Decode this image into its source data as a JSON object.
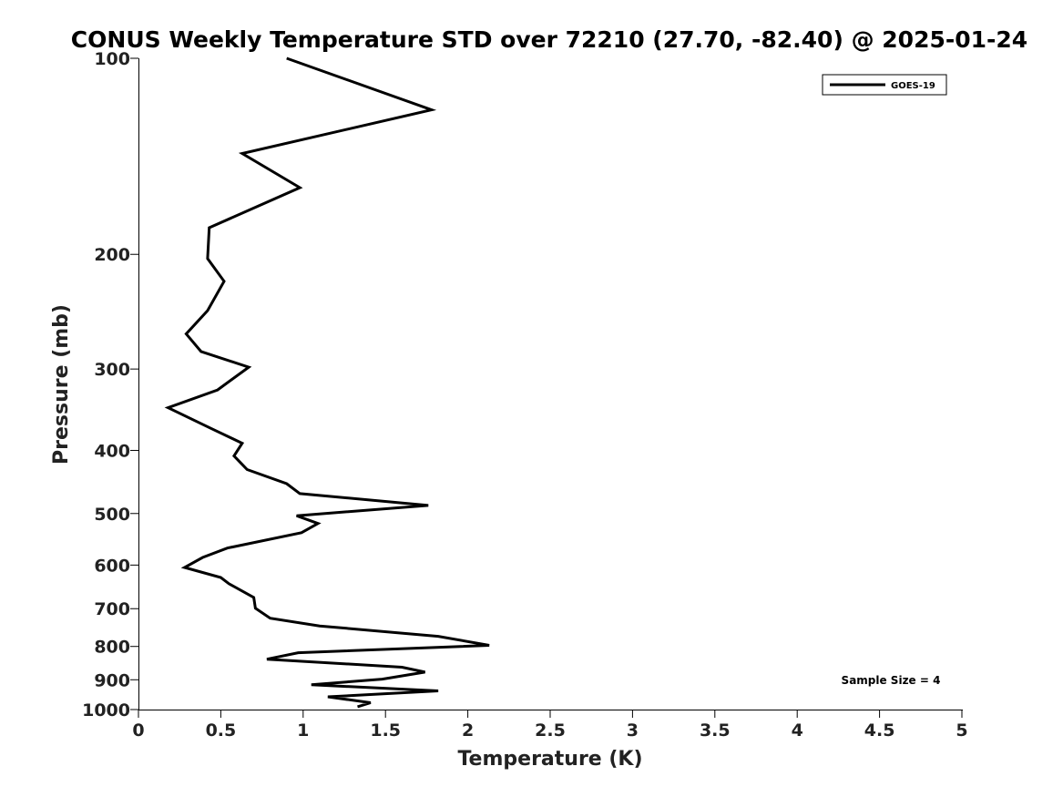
{
  "chart_data": {
    "type": "line",
    "title": "CONUS Weekly Temperature STD over 72210 (27.70, -82.40) @ 2025-01-24",
    "xlabel": "Temperature (K)",
    "ylabel": "Pressure (mb)",
    "xlim": [
      0,
      5
    ],
    "ylim": [
      1000,
      100
    ],
    "yscale": "log",
    "y_reversed": true,
    "x_ticks": [
      "0",
      "0.5",
      "1",
      "1.5",
      "2",
      "2.5",
      "3",
      "3.5",
      "4",
      "4.5",
      "5"
    ],
    "x_tick_values": [
      0,
      0.5,
      1,
      1.5,
      2,
      2.5,
      3,
      3.5,
      4,
      4.5,
      5
    ],
    "y_ticks": [
      "100",
      "200",
      "300",
      "400",
      "500",
      "600",
      "700",
      "800",
      "900",
      "1000"
    ],
    "y_tick_values": [
      100,
      200,
      300,
      400,
      500,
      600,
      700,
      800,
      900,
      1000
    ],
    "grid": false,
    "legend_position": "top-right",
    "series": [
      {
        "name": "GOES-19",
        "color": "#000000",
        "x": [
          0.9,
          1.78,
          0.63,
          0.98,
          0.43,
          0.42,
          0.52,
          0.42,
          0.29,
          0.38,
          0.67,
          0.48,
          0.18,
          0.44,
          0.63,
          0.58,
          0.66,
          0.9,
          0.98,
          1.76,
          0.96,
          1.09,
          0.99,
          0.54,
          0.39,
          0.28,
          0.5,
          0.55,
          0.7,
          0.71,
          0.8,
          1.1,
          1.82,
          2.13,
          0.97,
          0.78,
          1.6,
          1.74,
          1.48,
          1.05,
          1.82,
          1.15,
          1.41,
          1.33
        ],
        "y": [
          100,
          120,
          140,
          158,
          182,
          203,
          220,
          244,
          265,
          282,
          298,
          323,
          344,
          370,
          390,
          408,
          428,
          450,
          466,
          486,
          504,
          518,
          535,
          565,
          584,
          605,
          627,
          641,
          673,
          699,
          724,
          744,
          772,
          797,
          818,
          837,
          861,
          876,
          898,
          916,
          936,
          956,
          976,
          990
        ]
      }
    ],
    "annotations": [
      "Sample Size = 4"
    ]
  }
}
